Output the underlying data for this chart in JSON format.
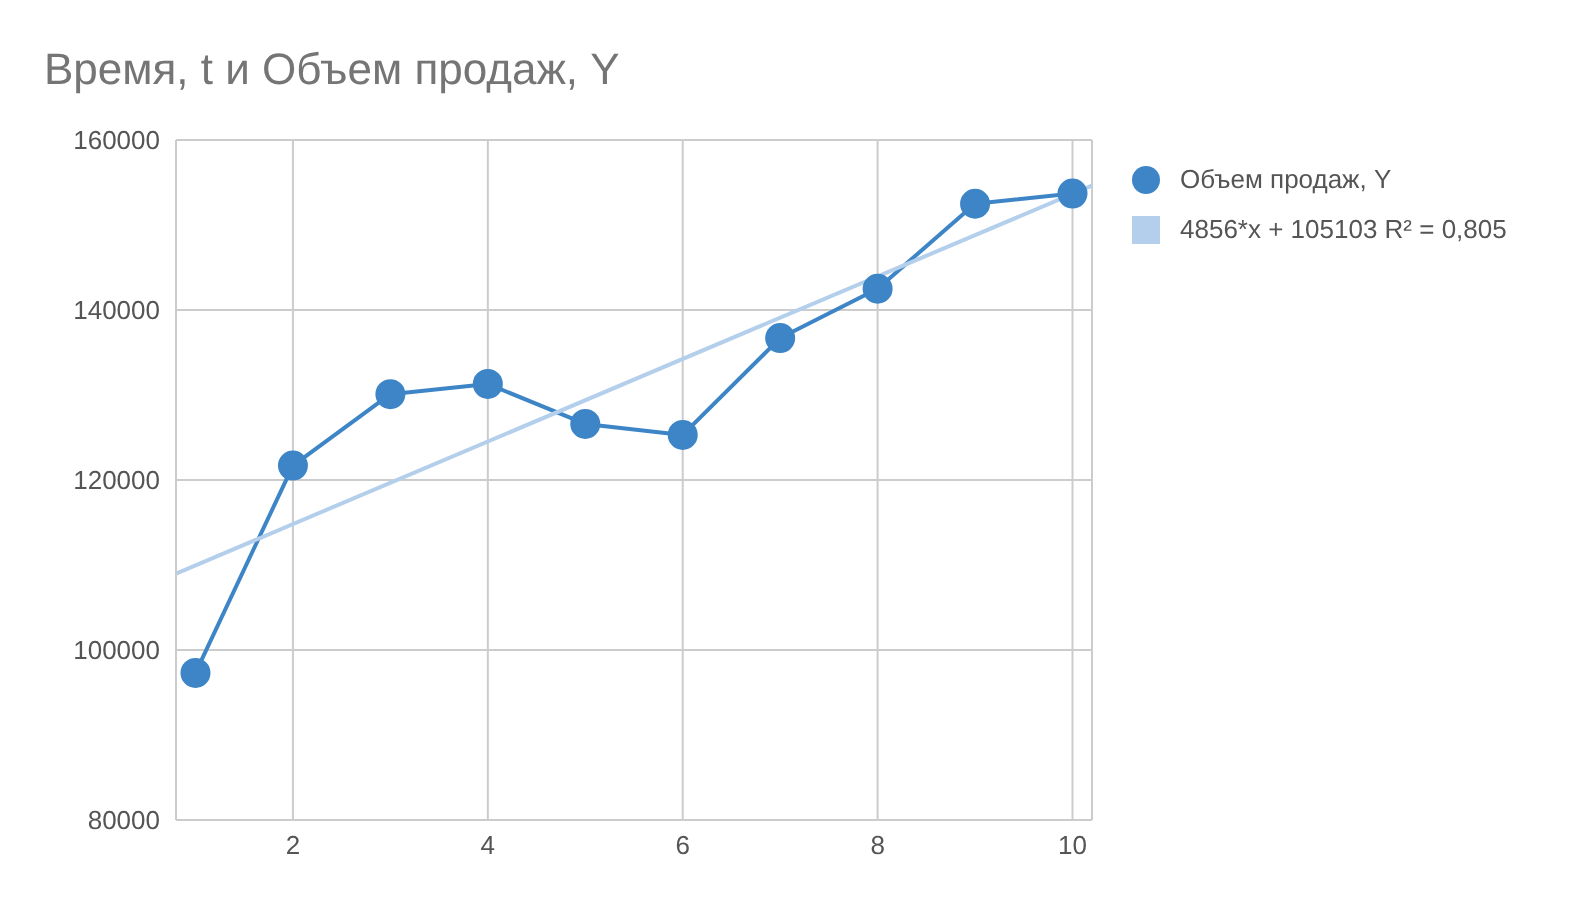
{
  "chart_data": {
    "type": "line",
    "title": "Время, t и Объем продаж, Y",
    "x": [
      1,
      2,
      3,
      4,
      5,
      6,
      7,
      8,
      9,
      10
    ],
    "series": [
      {
        "name": "Объем продаж, Y",
        "color": "#3d85c6",
        "values": [
          97300,
          121700,
          130100,
          131300,
          126600,
          125300,
          136700,
          142500,
          152500,
          153700
        ],
        "marker": "circle"
      },
      {
        "name": "4856*x + 105103 R² = 0,805",
        "type": "line",
        "color": "#b4cfeb",
        "x": [
          0.8,
          10.2
        ],
        "values": [
          108988,
          154634
        ],
        "marker": "none"
      }
    ],
    "xlim": [
      0.8,
      10.2
    ],
    "xticks": [
      2,
      4,
      6,
      8,
      10
    ],
    "ylim": [
      80000,
      160000
    ],
    "yticks": [
      80000,
      100000,
      120000,
      140000,
      160000
    ],
    "grid": true,
    "legend": "right"
  }
}
